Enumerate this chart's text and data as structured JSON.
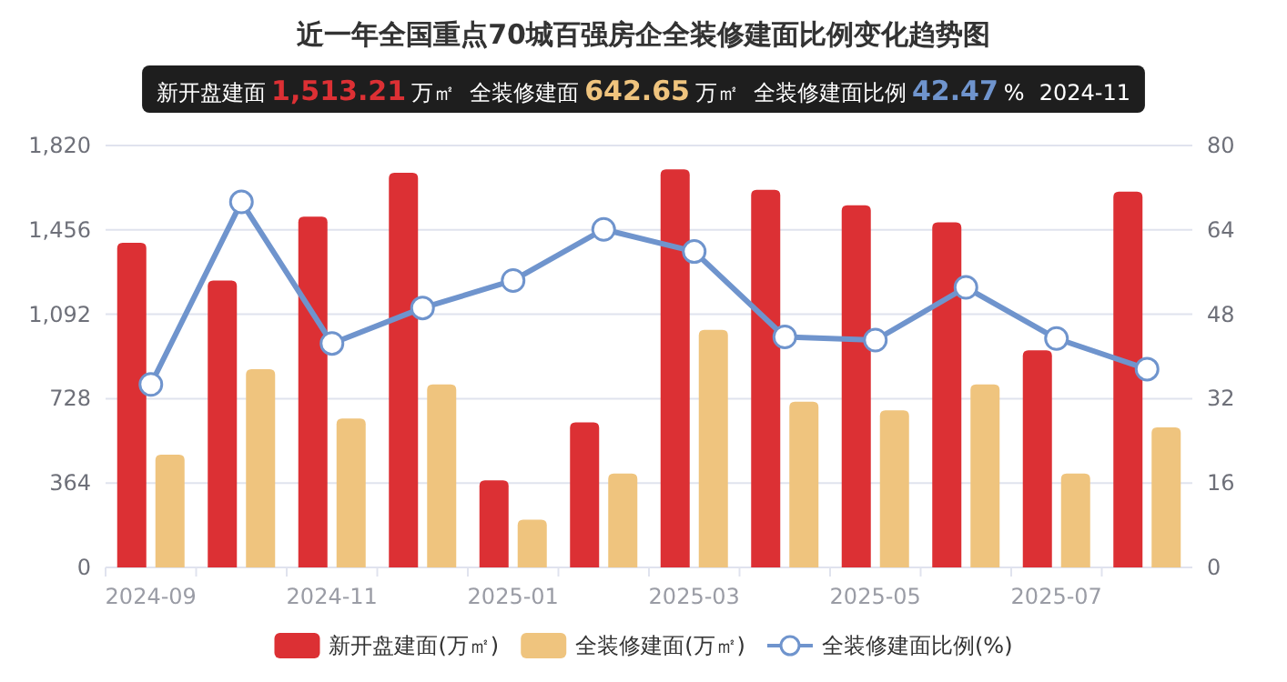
{
  "chart_data": {
    "type": "bar",
    "title": "近一年全国重点70城百强房企全装修建面比例变化趋势图",
    "categories": [
      "2024-09",
      null,
      "2024-11",
      null,
      "2025-01",
      null,
      "2025-03",
      null,
      "2025-05",
      null,
      "2025-07",
      null
    ],
    "series": [
      {
        "name": "新开盘建面(万㎡)",
        "color": "#dc3034",
        "values": [
          1400,
          1238,
          1513.21,
          1702,
          376,
          626,
          1717,
          1629,
          1562,
          1489,
          936,
          1621
        ]
      },
      {
        "name": "全装修建面(万㎡)",
        "color": "#efc47e",
        "values": [
          486,
          855,
          642.65,
          789,
          206,
          405,
          1025,
          715,
          678,
          789,
          405,
          604
        ]
      },
      {
        "name": "全装修建面比例(%)",
        "type": "line",
        "axis": "y2",
        "color": "#6f94cd",
        "marker": "circle",
        "values": [
          34.7,
          69.3,
          42.47,
          49.2,
          54.4,
          64.1,
          59.9,
          43.7,
          43.1,
          53.1,
          43.4,
          37.6
        ]
      }
    ],
    "ylim": [
      0,
      1820
    ],
    "yticks": [
      0,
      {
        "value": 364,
        "label": "364"
      },
      {
        "value": 728,
        "label": "728"
      },
      {
        "value": 1092,
        "label": "1,092"
      },
      {
        "value": 1456,
        "label": "1,456"
      },
      {
        "value": 1820,
        "label": "1,820"
      }
    ],
    "y2lim": [
      0,
      80
    ],
    "y2ticks": [
      0,
      16,
      32,
      48,
      64,
      80
    ],
    "grid": "y",
    "legend": "bottom",
    "annotations": [
      "新开盘建面 1,513.21 万㎡",
      "全装修建面 642.65 万㎡",
      "全装修建面比例 42.47 %",
      "2024-11"
    ]
  }
}
